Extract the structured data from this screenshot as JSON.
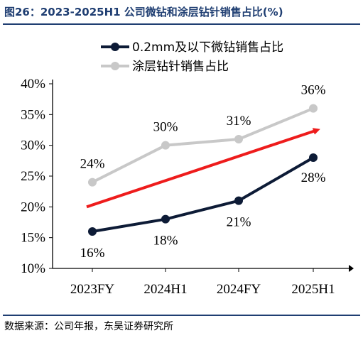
{
  "figure": {
    "title": "图26：2023-2025H1 公司微钻和涂层钻针销售占比(%)",
    "source": "数据来源：公司年报，东吴证券研究所"
  },
  "chart_data": {
    "type": "line",
    "title": "",
    "xlabel": "",
    "ylabel": "",
    "categories": [
      "2023FY",
      "2024H1",
      "2024FY",
      "2025H1"
    ],
    "ylim": [
      10,
      40
    ],
    "yticks": [
      10,
      15,
      20,
      25,
      30,
      35,
      40
    ],
    "ytick_labels": [
      "10%",
      "15%",
      "20%",
      "25%",
      "30%",
      "35%",
      "40%"
    ],
    "grid": false,
    "legend": "top",
    "series": [
      {
        "name": "0.2mm及以下微钻销售占比",
        "values": [
          16,
          18,
          21,
          28
        ],
        "labels": [
          "16%",
          "18%",
          "21%",
          "28%"
        ],
        "color": "#0d1b36"
      },
      {
        "name": "涂层钻针销售占比",
        "values": [
          24,
          30,
          31,
          36
        ],
        "labels": [
          "24%",
          "30%",
          "31%",
          "36%"
        ],
        "color": "#c8c8c8"
      }
    ],
    "trend_arrow": {
      "color": "#ee1c1c",
      "from": [
        0,
        20
      ],
      "to": [
        3,
        32.5
      ]
    }
  }
}
